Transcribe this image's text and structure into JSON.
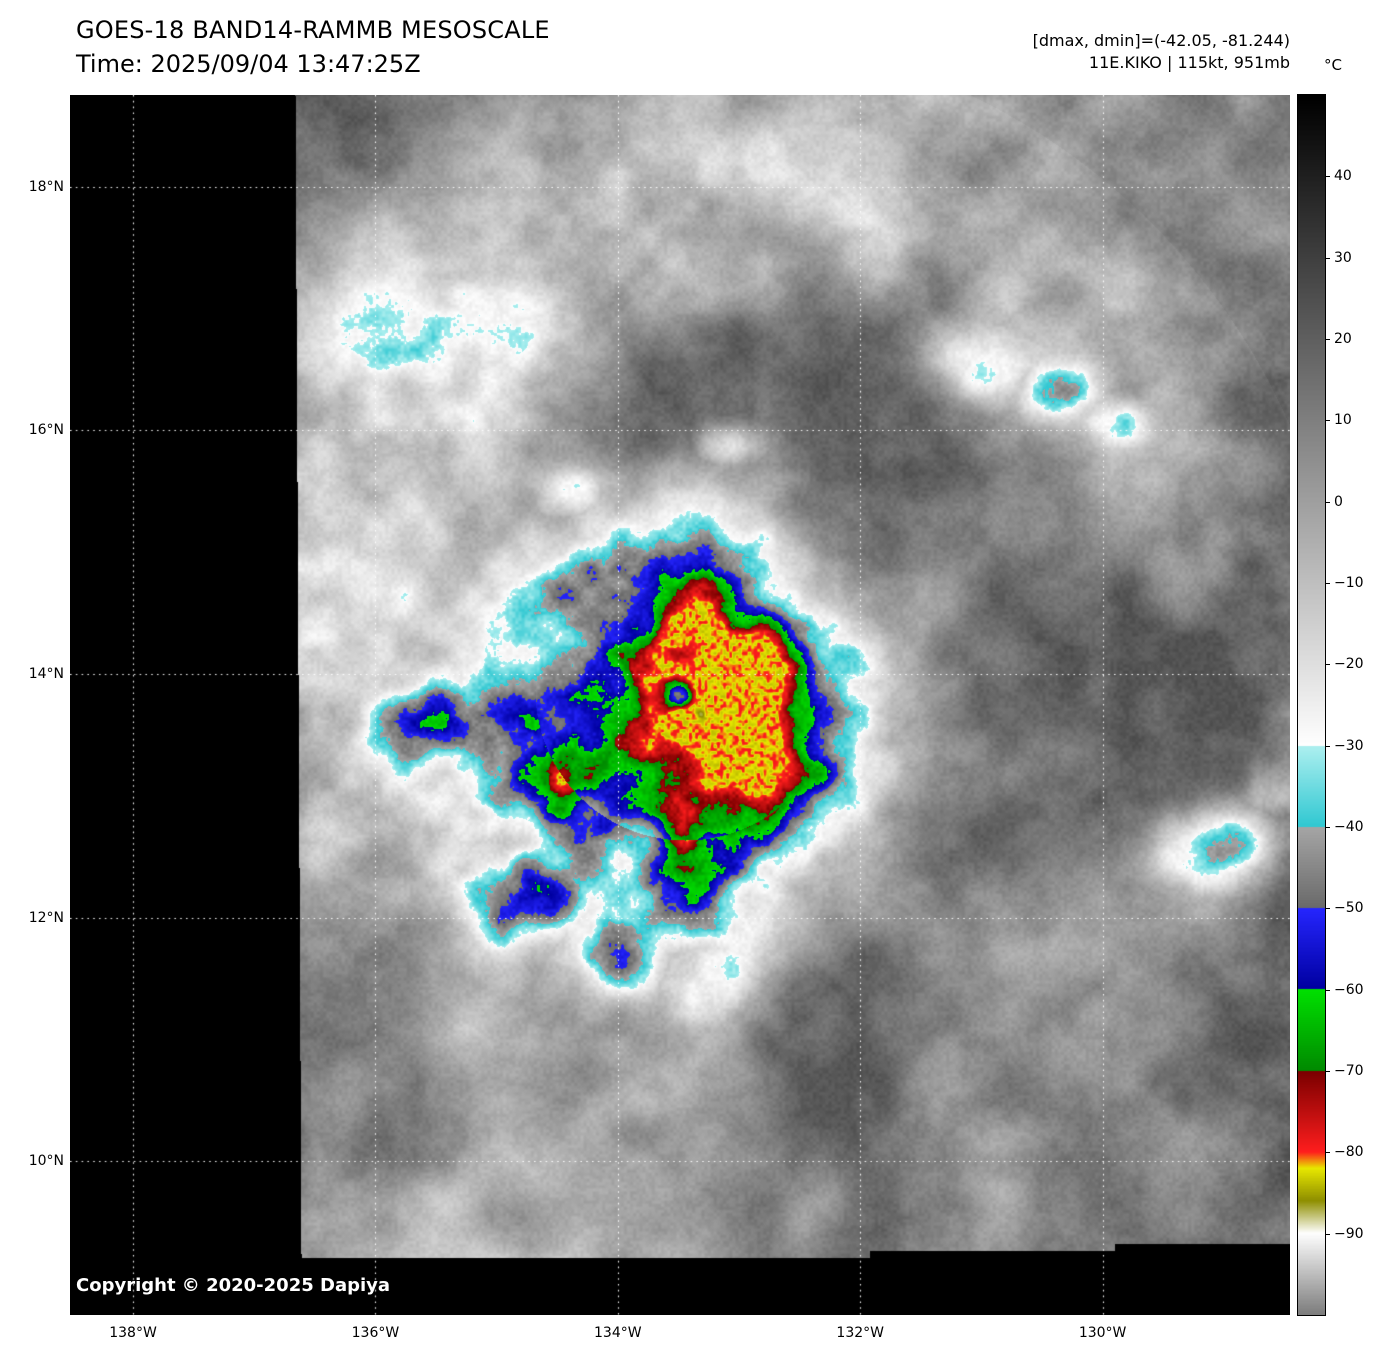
{
  "header": {
    "title": "GOES-18 BAND14-RAMMB MESOSCALE",
    "time": "Time: 2025/09/04 13:47:25Z",
    "dminmax": "[dmax, dmin]=(-42.05, -81.244)",
    "storm": "11E.KIKO | 115kt, 951mb"
  },
  "map": {
    "copyright": "Copyright © 2020-2025 Dapiya"
  },
  "axes": {
    "lat": [
      {
        "label": "18°N",
        "deg": 18
      },
      {
        "label": "16°N",
        "deg": 16
      },
      {
        "label": "14°N",
        "deg": 14
      },
      {
        "label": "12°N",
        "deg": 12
      },
      {
        "label": "10°N",
        "deg": 10
      }
    ],
    "lon": [
      {
        "label": "138°W",
        "deg": 138
      },
      {
        "label": "136°W",
        "deg": 136
      },
      {
        "label": "134°W",
        "deg": 134
      },
      {
        "label": "132°W",
        "deg": 132
      },
      {
        "label": "130°W",
        "deg": 130
      }
    ]
  },
  "colorbar": {
    "unit": "°C",
    "domain": [
      50,
      -100
    ],
    "ticks": [
      {
        "label": "40",
        "value": 40
      },
      {
        "label": "30",
        "value": 30
      },
      {
        "label": "20",
        "value": 20
      },
      {
        "label": "10",
        "value": 10
      },
      {
        "label": "0",
        "value": 0
      },
      {
        "label": "−10",
        "value": -10
      },
      {
        "label": "−20",
        "value": -20
      },
      {
        "label": "−30",
        "value": -30
      },
      {
        "label": "−40",
        "value": -40
      },
      {
        "label": "−50",
        "value": -50
      },
      {
        "label": "−60",
        "value": -60
      },
      {
        "label": "−70",
        "value": -70
      },
      {
        "label": "−80",
        "value": -80
      },
      {
        "label": "−90",
        "value": -90
      }
    ],
    "segments": [
      {
        "from": 50,
        "to": -30,
        "colors": [
          "#000000",
          "#ffffff"
        ]
      },
      {
        "from": -30,
        "to": -40,
        "colors": [
          "#aef0f0",
          "#30c8d2"
        ]
      },
      {
        "from": -40,
        "to": -50,
        "colors": [
          "#a6a6a6",
          "#6a6a6a"
        ]
      },
      {
        "from": -50,
        "to": -60,
        "colors": [
          "#2626ff",
          "#0000a0"
        ]
      },
      {
        "from": -60,
        "to": -70,
        "colors": [
          "#00e100",
          "#008a00"
        ]
      },
      {
        "from": -70,
        "to": -80,
        "colors": [
          "#7a0000",
          "#ff1e1e"
        ]
      },
      {
        "from": -80,
        "to": -82,
        "colors": [
          "#ff1e1e",
          "#e8e800"
        ]
      },
      {
        "from": -82,
        "to": -86,
        "colors": [
          "#e8e800",
          "#8f8f00"
        ]
      },
      {
        "from": -86,
        "to": -90,
        "colors": [
          "#8f8f00",
          "#ffffff"
        ]
      },
      {
        "from": -90,
        "to": -100,
        "colors": [
          "#ffffff",
          "#7d7d7d"
        ]
      }
    ]
  }
}
